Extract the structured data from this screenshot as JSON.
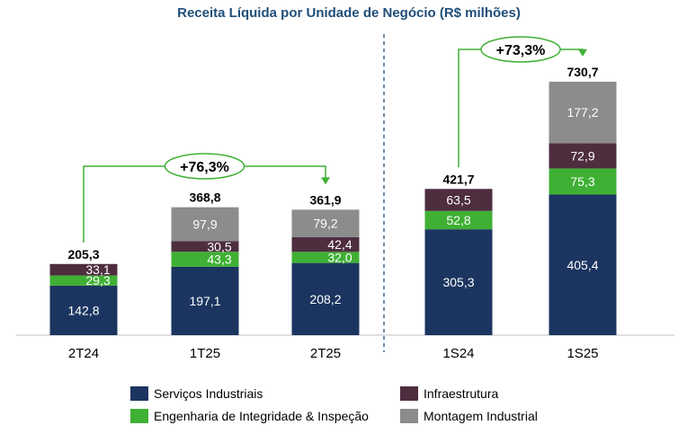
{
  "chart_data": {
    "type": "bar",
    "stacked": true,
    "title": "Receita Líquida por Unidade de Negócio (R$ milhões)",
    "categories": [
      "2T24",
      "1T25",
      "2T25",
      "1S24",
      "1S25"
    ],
    "series": [
      {
        "name": "Serviços Industriais",
        "color": "#1b3560",
        "values": [
          142.8,
          197.1,
          208.2,
          305.3,
          405.4
        ],
        "labels": [
          "142,8",
          "197,1",
          "208,2",
          "305,3",
          "405,4"
        ]
      },
      {
        "name": "Engenharia de Integridade & Inspeção",
        "color": "#3fb034",
        "values": [
          29.3,
          43.3,
          32.0,
          52.8,
          75.3
        ],
        "labels": [
          "29,3",
          "43,3",
          "32,0",
          "52,8",
          "75,3"
        ]
      },
      {
        "name": "Infraestrutura",
        "color": "#4e2d3f",
        "values": [
          33.1,
          30.5,
          42.4,
          63.5,
          72.9
        ],
        "labels": [
          "33,1",
          "30,5",
          "42,4",
          "63,5",
          "72,9"
        ]
      },
      {
        "name": "Montagem Industrial",
        "color": "#8c8c8c",
        "values": [
          0,
          97.9,
          79.2,
          0,
          177.2
        ],
        "labels": [
          "",
          "97,9",
          "79,2",
          "",
          "177,2"
        ]
      }
    ],
    "totals": [
      "205,3",
      "368,8",
      "361,9",
      "421,7",
      "730,7"
    ],
    "growth": [
      {
        "from": "2T24",
        "to": "2T25",
        "label": "+76,3%"
      },
      {
        "from": "1S24",
        "to": "1S25",
        "label": "+73,3%"
      }
    ],
    "legend_position": "bottom",
    "accent_color": "#3fb034",
    "separator": "dashed-vertical"
  }
}
